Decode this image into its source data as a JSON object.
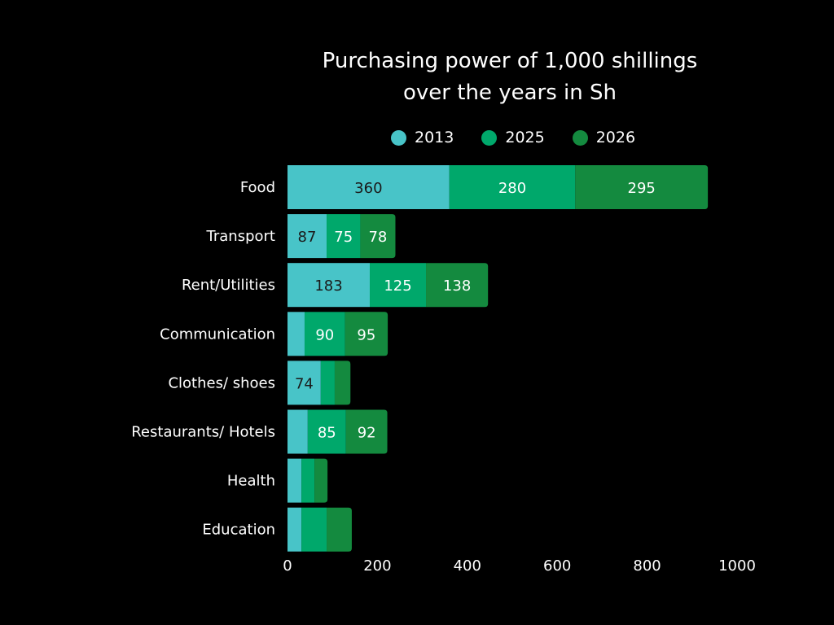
{
  "chart_data": {
    "type": "bar",
    "orientation": "horizontal",
    "stacked": true,
    "title": "Purchasing power of 1,000 shillings over the years in Sh",
    "title_lines": [
      "Purchasing power of 1,000 shillings",
      "over the years in Sh"
    ],
    "xlabel": "",
    "ylabel": "",
    "xlim": [
      0,
      1000
    ],
    "xticks": [
      0,
      200,
      400,
      600,
      800,
      1000
    ],
    "grid": false,
    "legend_position": "top",
    "categories": [
      "Food",
      "Transport",
      "Rent/Utilities",
      "Communication",
      "Clothes/ shoes",
      "Restaurants/ Hotels",
      "Health",
      "Education"
    ],
    "series": [
      {
        "name": "2013",
        "color": "#48C4C8",
        "label_color": "#1a1a1a",
        "values": [
          360,
          87,
          183,
          38,
          74,
          45,
          31,
          31
        ],
        "show_labels": [
          true,
          true,
          true,
          false,
          true,
          false,
          false,
          false
        ]
      },
      {
        "name": "2025",
        "color": "#00A86B",
        "label_color": "#ffffff",
        "values": [
          280,
          75,
          125,
          90,
          31,
          85,
          29,
          56
        ],
        "show_labels": [
          true,
          true,
          true,
          true,
          false,
          true,
          false,
          false
        ]
      },
      {
        "name": "2026",
        "color": "#148A3F",
        "label_color": "#ffffff",
        "values": [
          295,
          78,
          138,
          95,
          35,
          92,
          29,
          56
        ],
        "show_labels": [
          true,
          true,
          true,
          true,
          false,
          true,
          false,
          false
        ]
      }
    ]
  }
}
